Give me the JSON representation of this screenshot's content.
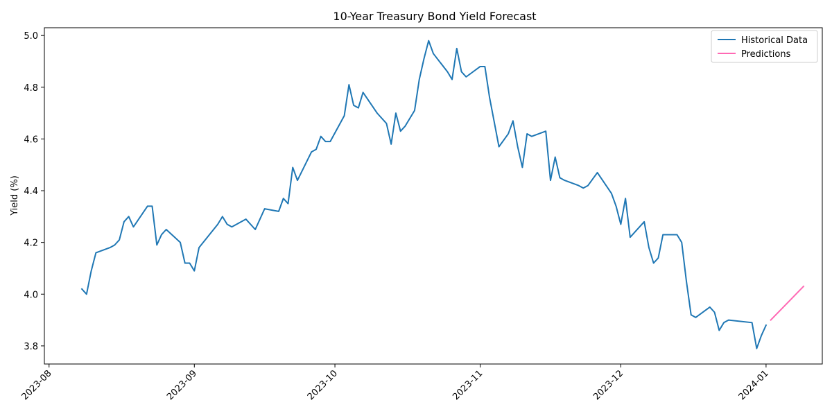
{
  "chart_data": {
    "type": "line",
    "title": "10-Year Treasury Bond Yield Forecast",
    "xlabel": "",
    "ylabel": "Yield (%)",
    "ylim": [
      3.73,
      5.03
    ],
    "xlim": [
      "2023-07-31",
      "2024-01-13"
    ],
    "x_ticks": [
      "2023-08-01",
      "2023-09-01",
      "2023-10-01",
      "2023-11-01",
      "2023-12-01",
      "2024-01-01"
    ],
    "x_tick_labels": [
      "2023-08",
      "2023-09",
      "2023-10",
      "2023-11",
      "2023-12",
      "2024-01"
    ],
    "y_ticks": [
      3.8,
      4.0,
      4.2,
      4.4,
      4.6,
      4.8,
      5.0
    ],
    "y_tick_labels": [
      "3.8",
      "4.0",
      "4.2",
      "4.4",
      "4.6",
      "4.8",
      "5.0"
    ],
    "grid": false,
    "legend_position": "top-right",
    "series": [
      {
        "name": "Historical Data",
        "color": "#1f77b4",
        "points": [
          [
            "2023-08-08",
            4.02
          ],
          [
            "2023-08-09",
            4.0
          ],
          [
            "2023-08-10",
            4.09
          ],
          [
            "2023-08-11",
            4.16
          ],
          [
            "2023-08-14",
            4.18
          ],
          [
            "2023-08-15",
            4.19
          ],
          [
            "2023-08-16",
            4.21
          ],
          [
            "2023-08-17",
            4.28
          ],
          [
            "2023-08-18",
            4.3
          ],
          [
            "2023-08-19",
            4.26
          ],
          [
            "2023-08-22",
            4.34
          ],
          [
            "2023-08-23",
            4.34
          ],
          [
            "2023-08-24",
            4.19
          ],
          [
            "2023-08-25",
            4.23
          ],
          [
            "2023-08-26",
            4.25
          ],
          [
            "2023-08-29",
            4.2
          ],
          [
            "2023-08-30",
            4.12
          ],
          [
            "2023-08-31",
            4.12
          ],
          [
            "2023-09-01",
            4.09
          ],
          [
            "2023-09-02",
            4.18
          ],
          [
            "2023-09-06",
            4.27
          ],
          [
            "2023-09-07",
            4.3
          ],
          [
            "2023-09-08",
            4.27
          ],
          [
            "2023-09-09",
            4.26
          ],
          [
            "2023-09-12",
            4.29
          ],
          [
            "2023-09-14",
            4.25
          ],
          [
            "2023-09-16",
            4.33
          ],
          [
            "2023-09-19",
            4.32
          ],
          [
            "2023-09-20",
            4.37
          ],
          [
            "2023-09-21",
            4.35
          ],
          [
            "2023-09-22",
            4.49
          ],
          [
            "2023-09-23",
            4.44
          ],
          [
            "2023-09-26",
            4.55
          ],
          [
            "2023-09-27",
            4.56
          ],
          [
            "2023-09-28",
            4.61
          ],
          [
            "2023-09-29",
            4.59
          ],
          [
            "2023-09-30",
            4.59
          ],
          [
            "2023-10-03",
            4.69
          ],
          [
            "2023-10-04",
            4.81
          ],
          [
            "2023-10-05",
            4.73
          ],
          [
            "2023-10-06",
            4.72
          ],
          [
            "2023-10-07",
            4.78
          ],
          [
            "2023-10-10",
            4.7
          ],
          [
            "2023-10-12",
            4.66
          ],
          [
            "2023-10-13",
            4.58
          ],
          [
            "2023-10-14",
            4.7
          ],
          [
            "2023-10-15",
            4.63
          ],
          [
            "2023-10-16",
            4.65
          ],
          [
            "2023-10-18",
            4.71
          ],
          [
            "2023-10-19",
            4.83
          ],
          [
            "2023-10-20",
            4.91
          ],
          [
            "2023-10-21",
            4.98
          ],
          [
            "2023-10-22",
            4.93
          ],
          [
            "2023-10-25",
            4.86
          ],
          [
            "2023-10-26",
            4.83
          ],
          [
            "2023-10-27",
            4.95
          ],
          [
            "2023-10-28",
            4.86
          ],
          [
            "2023-10-29",
            4.84
          ],
          [
            "2023-11-01",
            4.88
          ],
          [
            "2023-11-02",
            4.88
          ],
          [
            "2023-11-03",
            4.76
          ],
          [
            "2023-11-05",
            4.57
          ],
          [
            "2023-11-07",
            4.62
          ],
          [
            "2023-11-08",
            4.67
          ],
          [
            "2023-11-09",
            4.57
          ],
          [
            "2023-11-10",
            4.49
          ],
          [
            "2023-11-11",
            4.62
          ],
          [
            "2023-11-12",
            4.61
          ],
          [
            "2023-11-15",
            4.63
          ],
          [
            "2023-11-16",
            4.44
          ],
          [
            "2023-11-17",
            4.53
          ],
          [
            "2023-11-18",
            4.45
          ],
          [
            "2023-11-19",
            4.44
          ],
          [
            "2023-11-22",
            4.42
          ],
          [
            "2023-11-23",
            4.41
          ],
          [
            "2023-11-24",
            4.42
          ],
          [
            "2023-11-26",
            4.47
          ],
          [
            "2023-11-29",
            4.39
          ],
          [
            "2023-11-30",
            4.34
          ],
          [
            "2023-12-01",
            4.27
          ],
          [
            "2023-12-02",
            4.37
          ],
          [
            "2023-12-03",
            4.22
          ],
          [
            "2023-12-06",
            4.28
          ],
          [
            "2023-12-07",
            4.18
          ],
          [
            "2023-12-08",
            4.12
          ],
          [
            "2023-12-09",
            4.14
          ],
          [
            "2023-12-10",
            4.23
          ],
          [
            "2023-12-13",
            4.23
          ],
          [
            "2023-12-14",
            4.2
          ],
          [
            "2023-12-15",
            4.05
          ],
          [
            "2023-12-16",
            3.92
          ],
          [
            "2023-12-17",
            3.91
          ],
          [
            "2023-12-20",
            3.95
          ],
          [
            "2023-12-21",
            3.93
          ],
          [
            "2023-12-22",
            3.86
          ],
          [
            "2023-12-23",
            3.89
          ],
          [
            "2023-12-24",
            3.9
          ],
          [
            "2023-12-29",
            3.89
          ],
          [
            "2023-12-30",
            3.79
          ],
          [
            "2023-12-31",
            3.84
          ],
          [
            "2024-01-01",
            3.88
          ]
        ]
      },
      {
        "name": "Predictions",
        "color": "#ff69b4",
        "points": [
          [
            "2024-01-02",
            3.9
          ],
          [
            "2024-01-09",
            4.03
          ]
        ]
      }
    ]
  }
}
